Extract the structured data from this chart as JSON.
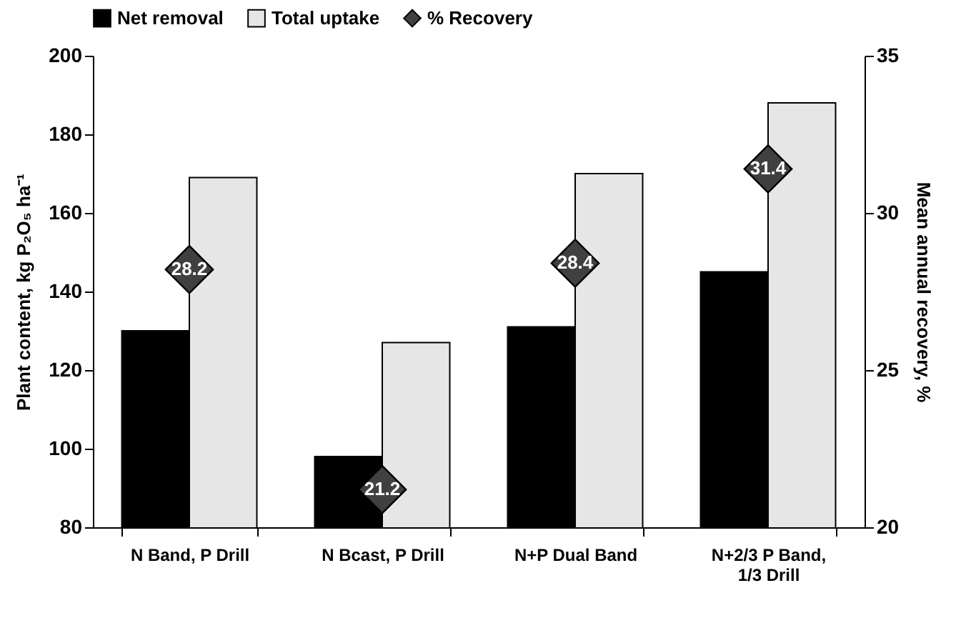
{
  "chart_data": {
    "type": "bar",
    "categories": [
      "N Band, P Drill",
      "N Bcast, P Drill",
      "N+P Dual Band",
      "N+2/3 P Band, 1/3 Drill"
    ],
    "series": [
      {
        "name": "Net removal",
        "color": "#000000",
        "values": [
          130,
          98,
          131,
          145
        ]
      },
      {
        "name": "Total uptake",
        "color": "#e6e6e6",
        "values": [
          169,
          127,
          170,
          188
        ]
      },
      {
        "name": "% Recovery",
        "type": "scatter",
        "axis": "y2",
        "color": "#404040",
        "values": [
          28.2,
          21.2,
          28.4,
          31.4
        ],
        "value_labels": [
          "28.2",
          "21.2",
          "28.4",
          "31.4"
        ]
      }
    ],
    "ylabel": "Plant content, kg P₂O₅ ha⁻¹",
    "y2label": "Mean annual recovery, %",
    "ylim": [
      80,
      200
    ],
    "yticks": [
      80,
      100,
      120,
      140,
      160,
      180,
      200
    ],
    "y2lim": [
      20,
      35
    ],
    "y2ticks": [
      20,
      25,
      30,
      35
    ],
    "legend": "top",
    "marker": "diamond",
    "grid": false
  }
}
